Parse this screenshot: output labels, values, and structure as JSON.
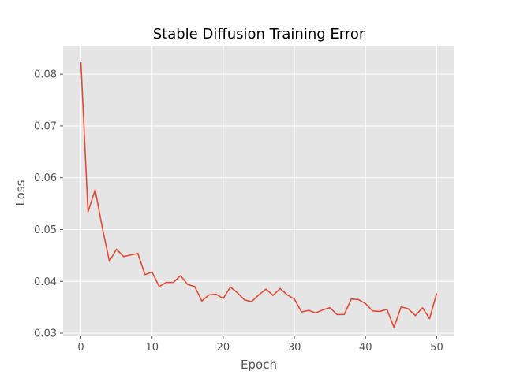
{
  "chart_data": {
    "type": "line",
    "title": "Stable Diffusion Training Error",
    "xlabel": "Epoch",
    "ylabel": "Loss",
    "xlim": [
      -2.5,
      52.5
    ],
    "ylim": [
      0.0294,
      0.0855
    ],
    "x_ticks": [
      0,
      10,
      20,
      30,
      40,
      50
    ],
    "y_ticks": [
      0.03,
      0.04,
      0.05,
      0.06,
      0.07,
      0.08
    ],
    "y_tick_labels": [
      "0.03",
      "0.04",
      "0.05",
      "0.06",
      "0.07",
      "0.08"
    ],
    "grid": true,
    "series": [
      {
        "color": "#e24a33",
        "x": [
          0,
          1,
          2,
          3,
          4,
          5,
          6,
          7,
          8,
          9,
          10,
          11,
          12,
          13,
          14,
          15,
          16,
          17,
          18,
          19,
          20,
          21,
          22,
          23,
          24,
          25,
          26,
          27,
          28,
          29,
          30,
          31,
          32,
          33,
          34,
          35,
          36,
          37,
          38,
          39,
          40,
          41,
          42,
          43,
          44,
          45,
          46,
          47,
          48,
          49,
          50
        ],
        "values": [
          0.0823,
          0.0534,
          0.0577,
          0.0504,
          0.0439,
          0.0462,
          0.0448,
          0.0451,
          0.0454,
          0.0413,
          0.0418,
          0.039,
          0.0398,
          0.0398,
          0.0411,
          0.0394,
          0.039,
          0.0362,
          0.0374,
          0.0375,
          0.0367,
          0.0389,
          0.0378,
          0.0364,
          0.0361,
          0.0374,
          0.0385,
          0.0373,
          0.0386,
          0.0374,
          0.0366,
          0.0341,
          0.0344,
          0.0339,
          0.0345,
          0.0349,
          0.0336,
          0.0336,
          0.0366,
          0.0365,
          0.0357,
          0.0343,
          0.0342,
          0.0346,
          0.0311,
          0.0351,
          0.0347,
          0.0334,
          0.0349,
          0.0328,
          0.0377
        ]
      }
    ]
  },
  "colors": {
    "plot_background": "#e5e5e5",
    "grid": "#ffffff",
    "text": "#555555"
  }
}
